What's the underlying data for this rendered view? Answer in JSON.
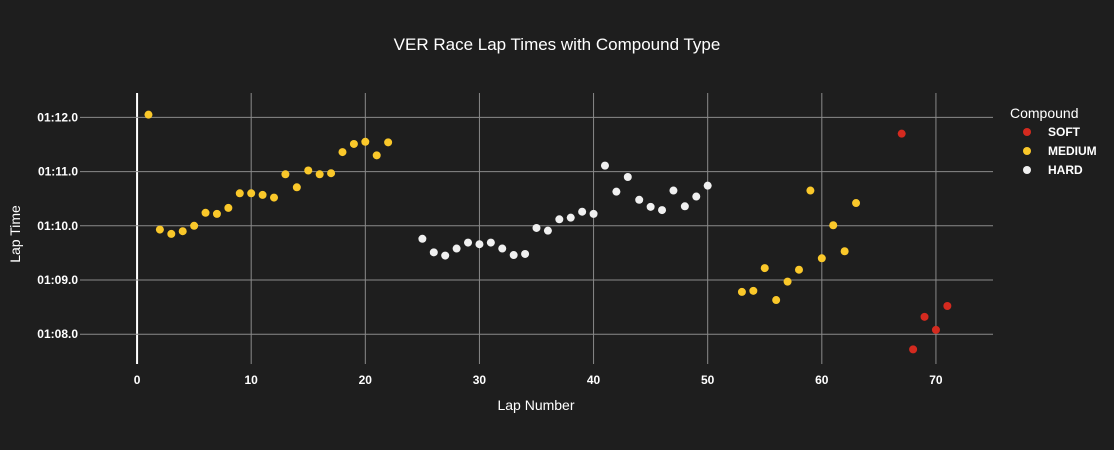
{
  "chart_data": {
    "type": "scatter",
    "title": "VER Race Lap Times with Compound Type",
    "xlabel": "Lap Number",
    "ylabel": "Lap Time",
    "xlim": [
      -5,
      75
    ],
    "ylim": [
      67.45,
      72.45
    ],
    "x_ticks": [
      0,
      10,
      20,
      30,
      40,
      50,
      60,
      70
    ],
    "y_ticks": [
      {
        "value": 68,
        "label": "01:08.0"
      },
      {
        "value": 69,
        "label": "01:09.0"
      },
      {
        "value": 70,
        "label": "01:10.0"
      },
      {
        "value": 71,
        "label": "01:11.0"
      },
      {
        "value": 72,
        "label": "01:12.0"
      }
    ],
    "grid": true,
    "legend_title": "Compound",
    "legend_position": "top-right",
    "series": [
      {
        "name": "SOFT",
        "color": "#d42a1f",
        "points": [
          [
            67,
            71.7
          ],
          [
            68,
            67.72
          ],
          [
            69,
            68.32
          ],
          [
            70,
            68.08
          ],
          [
            71,
            68.52
          ]
        ]
      },
      {
        "name": "MEDIUM",
        "color": "#fac82a",
        "points": [
          [
            1,
            72.05
          ],
          [
            2,
            69.93
          ],
          [
            3,
            69.85
          ],
          [
            4,
            69.9
          ],
          [
            5,
            70.0
          ],
          [
            6,
            70.24
          ],
          [
            7,
            70.22
          ],
          [
            8,
            70.33
          ],
          [
            9,
            70.6
          ],
          [
            10,
            70.6
          ],
          [
            11,
            70.57
          ],
          [
            12,
            70.52
          ],
          [
            13,
            70.95
          ],
          [
            14,
            70.71
          ],
          [
            15,
            71.02
          ],
          [
            16,
            70.95
          ],
          [
            17,
            70.97
          ],
          [
            18,
            71.36
          ],
          [
            19,
            71.51
          ],
          [
            20,
            71.55
          ],
          [
            21,
            71.3
          ],
          [
            22,
            71.54
          ],
          [
            53,
            68.78
          ],
          [
            54,
            68.8
          ],
          [
            55,
            69.22
          ],
          [
            56,
            68.63
          ],
          [
            57,
            68.97
          ],
          [
            58,
            69.19
          ],
          [
            59,
            70.65
          ],
          [
            60,
            69.4
          ],
          [
            61,
            70.01
          ],
          [
            62,
            69.53
          ],
          [
            63,
            70.42
          ]
        ]
      },
      {
        "name": "HARD",
        "color": "#f0f0f0",
        "points": [
          [
            25,
            69.76
          ],
          [
            26,
            69.51
          ],
          [
            27,
            69.45
          ],
          [
            28,
            69.58
          ],
          [
            29,
            69.69
          ],
          [
            30,
            69.66
          ],
          [
            31,
            69.69
          ],
          [
            32,
            69.58
          ],
          [
            33,
            69.46
          ],
          [
            34,
            69.48
          ],
          [
            35,
            69.96
          ],
          [
            36,
            69.91
          ],
          [
            37,
            70.12
          ],
          [
            38,
            70.15
          ],
          [
            39,
            70.26
          ],
          [
            40,
            70.22
          ],
          [
            41,
            71.11
          ],
          [
            42,
            70.63
          ],
          [
            43,
            70.9
          ],
          [
            44,
            70.48
          ],
          [
            45,
            70.35
          ],
          [
            46,
            70.29
          ],
          [
            47,
            70.65
          ],
          [
            48,
            70.36
          ],
          [
            49,
            70.54
          ],
          [
            50,
            70.74
          ]
        ]
      }
    ]
  }
}
